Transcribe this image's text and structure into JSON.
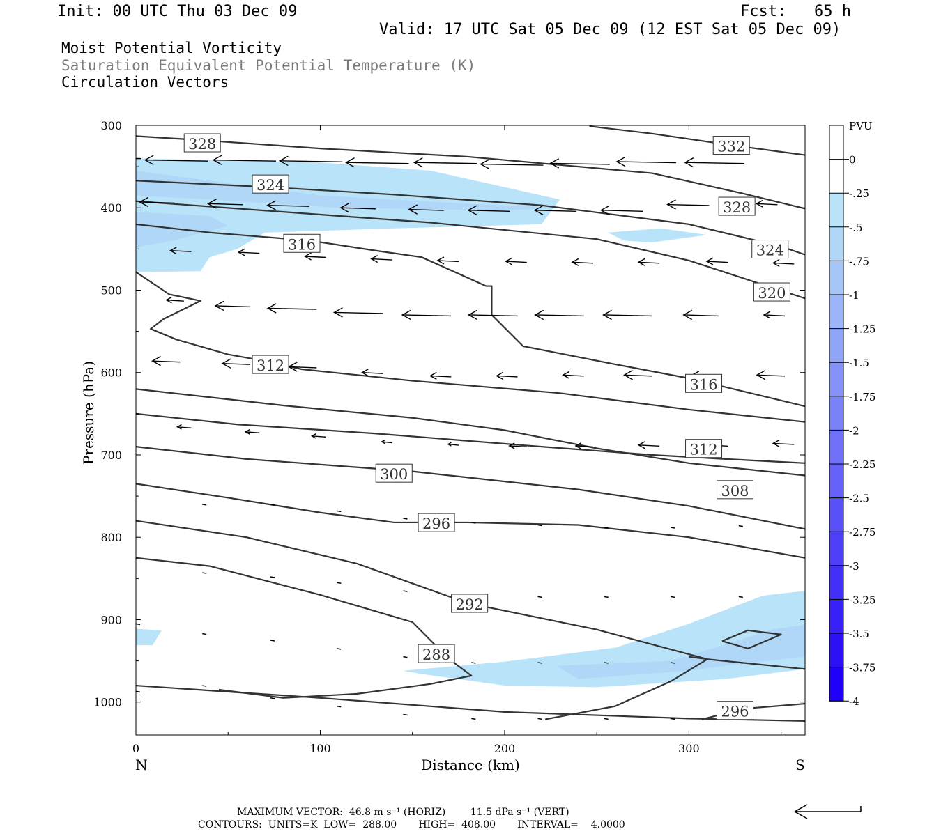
{
  "header": {
    "init": "Init: 00 UTC Thu 03 Dec 09",
    "fcst": "Fcst:   65 h",
    "valid": "Valid: 17 UTC Sat 05 Dec 09 (12 EST Sat 05 Dec 09)",
    "title_mpv": "Moist Potential Vorticity",
    "title_theta": "Saturation Equivalent Potential Temperature (K)",
    "title_vectors": "Circulation Vectors"
  },
  "footer": {
    "max_vector": "MAXIMUM VECTOR:  46.8 m s⁻¹ (HORIZ)        11.5 dPa s⁻¹ (VERT)",
    "contours": "CONTOURS:  UNITS=K  LOW=  288.00       HIGH=  408.00       INTERVAL=    4.0000"
  },
  "chart_data": {
    "type": "cross-section",
    "xlabel": "Distance (km)",
    "ylabel": "Pressure (hPa)",
    "xlim": [
      0,
      363
    ],
    "ylim": [
      300,
      1040
    ],
    "xticks": [
      0,
      100,
      200,
      300
    ],
    "yticks": [
      300,
      400,
      500,
      600,
      700,
      800,
      900,
      1000
    ],
    "end_labels": {
      "left": "N",
      "right": "S"
    },
    "colorbar": {
      "unit": "PVU",
      "labels": [
        "0",
        "-.25",
        "-.5",
        "-.75",
        "-1",
        "-1.25",
        "-1.5",
        "-1.75",
        "-2",
        "-2.25",
        "-2.5",
        "-2.75",
        "-3",
        "-3.25",
        "-3.5",
        "-3.75",
        "-4"
      ],
      "colors": [
        "#ffffff",
        "#ffffff",
        "#b9e3f8",
        "#b1d7f8",
        "#a6c6f8",
        "#9bb5f8",
        "#90a4f8",
        "#8593f8",
        "#7a82f8",
        "#6f71f8",
        "#6460f8",
        "#5950f8",
        "#4e40f8",
        "#4330f8",
        "#3820f8",
        "#2d10f8",
        "#2000f8"
      ]
    },
    "mpv_fills": [
      {
        "level": "-.25",
        "points": [
          [
            0,
            340
          ],
          [
            100,
            345
          ],
          [
            160,
            355
          ],
          [
            230,
            390
          ],
          [
            220,
            420
          ],
          [
            140,
            425
          ],
          [
            70,
            430
          ],
          [
            55,
            450
          ],
          [
            40,
            460
          ],
          [
            35,
            477
          ],
          [
            0,
            478
          ]
        ]
      },
      {
        "level": "-.5",
        "points": [
          [
            0,
            355
          ],
          [
            50,
            370
          ],
          [
            100,
            385
          ],
          [
            180,
            395
          ],
          [
            230,
            400
          ],
          [
            200,
            403
          ],
          [
            110,
            400
          ],
          [
            40,
            390
          ],
          [
            0,
            385
          ]
        ]
      },
      {
        "level": "-.5",
        "points": [
          [
            0,
            405
          ],
          [
            40,
            410
          ],
          [
            50,
            422
          ],
          [
            20,
            440
          ],
          [
            0,
            448
          ]
        ]
      },
      {
        "level": "-.25",
        "points": [
          [
            256,
            430
          ],
          [
            285,
            425
          ],
          [
            310,
            433
          ],
          [
            280,
            442
          ],
          [
            265,
            440
          ]
        ]
      },
      {
        "level": "-.25",
        "points": [
          [
            0,
            911
          ],
          [
            14,
            913
          ],
          [
            9,
            931
          ],
          [
            0,
            931
          ]
        ]
      },
      {
        "level": "-.25",
        "points": [
          [
            145,
            962
          ],
          [
            200,
            951
          ],
          [
            260,
            934
          ],
          [
            300,
            905
          ],
          [
            340,
            871
          ],
          [
            363,
            865
          ],
          [
            363,
            960
          ],
          [
            320,
            972
          ],
          [
            250,
            982
          ],
          [
            200,
            980
          ],
          [
            155,
            966
          ]
        ]
      },
      {
        "level": "-.5",
        "points": [
          [
            228,
            956
          ],
          [
            290,
            950
          ],
          [
            320,
            930
          ],
          [
            345,
            912
          ],
          [
            363,
            906
          ],
          [
            363,
            945
          ],
          [
            330,
            953
          ],
          [
            300,
            962
          ],
          [
            240,
            972
          ]
        ]
      }
    ],
    "contours": [
      {
        "value": "332",
        "points": [
          [
            246,
            301
          ],
          [
            280,
            310
          ],
          [
            320,
            323
          ],
          [
            363,
            336
          ]
        ]
      },
      {
        "value": "328",
        "points": [
          [
            0,
            313
          ],
          [
            36,
            318
          ],
          [
            100,
            328
          ],
          [
            180,
            338
          ],
          [
            280,
            358
          ],
          [
            330,
            383
          ],
          [
            363,
            401
          ]
        ]
      },
      {
        "value": "324",
        "points": [
          [
            0,
            367
          ],
          [
            73,
            375
          ],
          [
            140,
            384
          ],
          [
            220,
            397
          ],
          [
            300,
            420
          ],
          [
            350,
            447
          ],
          [
            363,
            457
          ]
        ]
      },
      {
        "value": "320",
        "points": [
          [
            0,
            392
          ],
          [
            80,
            405
          ],
          [
            160,
            418
          ],
          [
            250,
            438
          ],
          [
            300,
            464
          ],
          [
            363,
            510
          ]
        ]
      },
      {
        "value": "316",
        "points": [
          [
            0,
            420
          ],
          [
            40,
            430
          ],
          [
            95,
            440
          ],
          [
            130,
            452
          ],
          [
            155,
            460
          ],
          [
            190,
            495
          ],
          [
            193,
            495
          ],
          [
            193,
            530
          ],
          [
            210,
            568
          ],
          [
            260,
            590
          ],
          [
            300,
            607
          ],
          [
            363,
            641
          ]
        ]
      },
      {
        "value": "312",
        "points": [
          [
            0,
            478
          ],
          [
            18,
            505
          ],
          [
            35,
            513
          ],
          [
            15,
            535
          ],
          [
            8,
            547
          ],
          [
            22,
            560
          ],
          [
            50,
            578
          ],
          [
            70,
            586
          ],
          [
            90,
            596
          ],
          [
            150,
            610
          ],
          [
            230,
            625
          ],
          [
            300,
            645
          ],
          [
            363,
            660
          ]
        ]
      },
      {
        "value": "312",
        "points": [
          [
            0,
            650
          ],
          [
            55,
            663
          ],
          [
            130,
            674
          ],
          [
            220,
            690
          ],
          [
            280,
            700
          ],
          [
            320,
            705
          ],
          [
            363,
            710
          ]
        ]
      },
      {
        "value": "308",
        "points": [
          [
            0,
            620
          ],
          [
            80,
            640
          ],
          [
            150,
            655
          ],
          [
            200,
            670
          ],
          [
            250,
            692
          ],
          [
            300,
            710
          ],
          [
            363,
            725
          ]
        ]
      },
      {
        "value": "300",
        "points": [
          [
            0,
            690
          ],
          [
            60,
            705
          ],
          [
            150,
            720
          ],
          [
            240,
            742
          ],
          [
            300,
            762
          ],
          [
            363,
            790
          ]
        ]
      },
      {
        "value": "296",
        "points": [
          [
            0,
            735
          ],
          [
            50,
            752
          ],
          [
            100,
            770
          ],
          [
            140,
            782
          ],
          [
            180,
            782
          ],
          [
            240,
            785
          ],
          [
            300,
            800
          ],
          [
            363,
            825
          ]
        ]
      },
      {
        "value": "292",
        "points": [
          [
            0,
            780
          ],
          [
            60,
            800
          ],
          [
            120,
            832
          ],
          [
            180,
            880
          ],
          [
            250,
            912
          ],
          [
            310,
            948
          ],
          [
            363,
            960
          ]
        ]
      },
      {
        "value": "288",
        "points": [
          [
            0,
            825
          ],
          [
            40,
            835
          ],
          [
            100,
            870
          ],
          [
            150,
            903
          ],
          [
            170,
            948
          ],
          [
            182,
            968
          ],
          [
            160,
            978
          ],
          [
            120,
            990
          ],
          [
            80,
            995
          ],
          [
            45,
            985
          ]
        ]
      },
      {
        "value": "288",
        "points": [
          [
            222,
            1021
          ],
          [
            260,
            1005
          ],
          [
            290,
            975
          ],
          [
            310,
            948
          ],
          [
            300,
            945
          ]
        ]
      },
      {
        "value": "288",
        "points": [
          [
            318,
            926
          ],
          [
            332,
            913
          ],
          [
            350,
            918
          ],
          [
            332,
            935
          ],
          [
            318,
            926
          ]
        ]
      },
      {
        "value": "296",
        "points": [
          [
            0,
            980
          ],
          [
            100,
            995
          ],
          [
            200,
            1012
          ],
          [
            300,
            1020
          ],
          [
            363,
            1023
          ]
        ]
      },
      {
        "value": "296",
        "points": [
          [
            307,
            1021
          ],
          [
            330,
            1008
          ],
          [
            363,
            1002
          ]
        ]
      }
    ],
    "contour_labels": [
      {
        "text": "332",
        "x": 323,
        "p": 325
      },
      {
        "text": "328",
        "x": 36,
        "p": 322
      },
      {
        "text": "328",
        "x": 326,
        "p": 399
      },
      {
        "text": "324",
        "x": 73,
        "p": 372
      },
      {
        "text": "324",
        "x": 344,
        "p": 451
      },
      {
        "text": "320",
        "x": 345,
        "p": 503
      },
      {
        "text": "316",
        "x": 90,
        "p": 444
      },
      {
        "text": "316",
        "x": 308,
        "p": 614
      },
      {
        "text": "312",
        "x": 73,
        "p": 591
      },
      {
        "text": "312",
        "x": 308,
        "p": 693
      },
      {
        "text": "308",
        "x": 325,
        "p": 743
      },
      {
        "text": "300",
        "x": 140,
        "p": 723
      },
      {
        "text": "296",
        "x": 163,
        "p": 783
      },
      {
        "text": "296",
        "x": 325,
        "p": 1011
      },
      {
        "text": "292",
        "x": 181,
        "p": 881
      },
      {
        "text": "288",
        "x": 163,
        "p": 942
      }
    ],
    "vectors": [
      {
        "x": 0,
        "p": 339,
        "u": -2.0
      },
      {
        "x": 36,
        "p": 342,
        "u": -1.8
      },
      {
        "x": 73,
        "p": 342,
        "u": -1.8
      },
      {
        "x": 109,
        "p": 343,
        "u": -1.8
      },
      {
        "x": 145,
        "p": 345,
        "u": -1.8
      },
      {
        "x": 182,
        "p": 345,
        "u": -1.8
      },
      {
        "x": 218,
        "p": 347,
        "u": -1.8
      },
      {
        "x": 254,
        "p": 346,
        "u": -1.7
      },
      {
        "x": 290,
        "p": 344,
        "u": -1.7
      },
      {
        "x": 327,
        "p": 345,
        "u": -1.7
      },
      {
        "x": 18,
        "p": 393,
        "u": -1.0
      },
      {
        "x": 55,
        "p": 395,
        "u": -1.0
      },
      {
        "x": 91,
        "p": 397,
        "u": -1.2
      },
      {
        "x": 127,
        "p": 400,
        "u": -1.0
      },
      {
        "x": 164,
        "p": 402,
        "u": -1.0
      },
      {
        "x": 200,
        "p": 403,
        "u": -1.2
      },
      {
        "x": 236,
        "p": 403,
        "u": -1.2
      },
      {
        "x": 272,
        "p": 403,
        "u": -1.2
      },
      {
        "x": 308,
        "p": 396,
        "u": -1.2
      },
      {
        "x": 345,
        "p": 395,
        "u": -0.6
      },
      {
        "x": 27,
        "p": 452,
        "u": -0.6
      },
      {
        "x": 64,
        "p": 454,
        "u": -0.6
      },
      {
        "x": 100,
        "p": 459,
        "u": -0.6
      },
      {
        "x": 136,
        "p": 462,
        "u": -0.6
      },
      {
        "x": 172,
        "p": 464,
        "u": -0.6
      },
      {
        "x": 209,
        "p": 465,
        "u": -0.6
      },
      {
        "x": 245,
        "p": 466,
        "u": -0.6
      },
      {
        "x": 281,
        "p": 466,
        "u": -0.6
      },
      {
        "x": 318,
        "p": 465,
        "u": -0.6
      },
      {
        "x": 354,
        "p": 467,
        "u": -0.6
      },
      {
        "x": 23,
        "p": 512,
        "u": -0.5
      },
      {
        "x": 59,
        "p": 519,
        "u": -1.0
      },
      {
        "x": 95,
        "p": 522,
        "u": -1.4
      },
      {
        "x": 131,
        "p": 527,
        "u": -1.4
      },
      {
        "x": 168,
        "p": 530,
        "u": -1.4
      },
      {
        "x": 204,
        "p": 530,
        "u": -1.4
      },
      {
        "x": 240,
        "p": 530,
        "u": -1.4
      },
      {
        "x": 277,
        "p": 530,
        "u": -1.4
      },
      {
        "x": 313,
        "p": 530,
        "u": -1.0
      },
      {
        "x": 349,
        "p": 530,
        "u": -0.6
      },
      {
        "x": 21,
        "p": 586,
        "u": -0.8
      },
      {
        "x": 59,
        "p": 589,
        "u": -0.8
      },
      {
        "x": 95,
        "p": 593,
        "u": -0.8
      },
      {
        "x": 131,
        "p": 600,
        "u": -0.6
      },
      {
        "x": 168,
        "p": 604,
        "u": -0.6
      },
      {
        "x": 204,
        "p": 604,
        "u": -0.6
      },
      {
        "x": 240,
        "p": 603,
        "u": -0.6
      },
      {
        "x": 277,
        "p": 603,
        "u": -0.8
      },
      {
        "x": 313,
        "p": 604,
        "u": -0.8
      },
      {
        "x": 349,
        "p": 603,
        "u": -0.8
      },
      {
        "x": 27,
        "p": 666,
        "u": -0.4
      },
      {
        "x": 64,
        "p": 672,
        "u": -0.4
      },
      {
        "x": 100,
        "p": 677,
        "u": -0.4
      },
      {
        "x": 136,
        "p": 684,
        "u": -0.3
      },
      {
        "x": 172,
        "p": 687,
        "u": -0.3
      },
      {
        "x": 209,
        "p": 689,
        "u": -0.5
      },
      {
        "x": 245,
        "p": 689,
        "u": -0.5
      },
      {
        "x": 281,
        "p": 688,
        "u": -0.6
      },
      {
        "x": 318,
        "p": 688,
        "u": -0.6
      },
      {
        "x": 354,
        "p": 686,
        "u": -0.6
      }
    ],
    "max_vector": {
      "horiz": "46.8",
      "vert": "11.5"
    }
  }
}
